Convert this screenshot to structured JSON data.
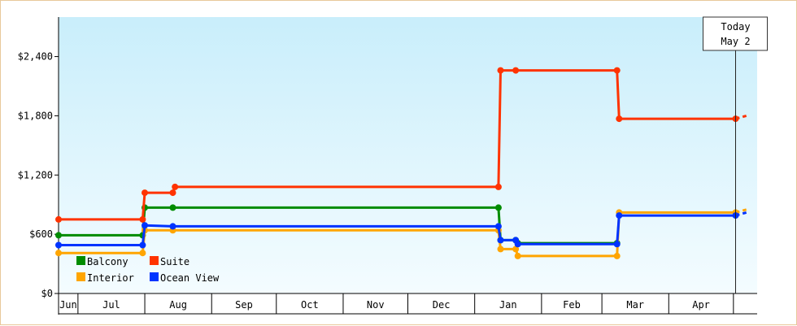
{
  "chart_data": {
    "type": "line",
    "step": true,
    "x_axis": {
      "months": [
        "Jun",
        "Jul",
        "Aug",
        "Sep",
        "Oct",
        "Nov",
        "Dec",
        "Jan",
        "Feb",
        "Mar",
        "Apr"
      ],
      "range": [
        "2013-06-22",
        "2014-05-12"
      ]
    },
    "y_axis": {
      "range": [
        0,
        2800
      ],
      "ticks": [
        {
          "value": 0,
          "label": "$0"
        },
        {
          "value": 600,
          "label": "$600"
        },
        {
          "value": 1200,
          "label": "$1,200"
        },
        {
          "value": 1800,
          "label": "$1,800"
        },
        {
          "value": 2400,
          "label": "$2,400"
        }
      ]
    },
    "today_marker": {
      "date": "2014-05-02",
      "line1": "Today",
      "line2": "May 2"
    },
    "legend": {
      "placement": "bottom-left",
      "columns": 2
    },
    "series": [
      {
        "name": "Balcony",
        "color": "#008c00",
        "points": [
          [
            "2013-06-22",
            590
          ],
          [
            "2013-07-31",
            590
          ],
          [
            "2013-08-01",
            870
          ],
          [
            "2013-08-14",
            870
          ],
          [
            "2014-01-12",
            870
          ],
          [
            "2014-01-13",
            540
          ],
          [
            "2014-01-20",
            540
          ],
          [
            "2014-01-21",
            510
          ],
          [
            "2014-03-08",
            510
          ]
        ]
      },
      {
        "name": "Suite",
        "color": "#ff3300",
        "points": [
          [
            "2013-06-22",
            750
          ],
          [
            "2013-07-31",
            750
          ],
          [
            "2013-08-01",
            1020
          ],
          [
            "2013-08-14",
            1020
          ],
          [
            "2013-08-15",
            1080
          ],
          [
            "2014-01-12",
            1080
          ],
          [
            "2014-01-13",
            2260
          ],
          [
            "2014-01-20",
            2260
          ],
          [
            "2014-03-08",
            2260
          ],
          [
            "2014-03-09",
            1770
          ],
          [
            "2014-05-02",
            1770
          ],
          [
            "2014-05-07",
            1800
          ]
        ]
      },
      {
        "name": "Interior",
        "color": "#ffa500",
        "points": [
          [
            "2013-06-22",
            410
          ],
          [
            "2013-07-31",
            410
          ],
          [
            "2013-08-01",
            640
          ],
          [
            "2013-08-14",
            640
          ],
          [
            "2014-01-12",
            640
          ],
          [
            "2014-01-13",
            450
          ],
          [
            "2014-01-20",
            450
          ],
          [
            "2014-01-21",
            380
          ],
          [
            "2014-03-08",
            380
          ],
          [
            "2014-03-09",
            820
          ],
          [
            "2014-05-02",
            820
          ],
          [
            "2014-05-07",
            850
          ]
        ]
      },
      {
        "name": "Ocean View",
        "color": "#0033ff",
        "points": [
          [
            "2013-06-22",
            490
          ],
          [
            "2013-07-31",
            490
          ],
          [
            "2013-08-01",
            690
          ],
          [
            "2013-08-14",
            680
          ],
          [
            "2014-01-12",
            680
          ],
          [
            "2014-01-13",
            540
          ],
          [
            "2014-01-20",
            540
          ],
          [
            "2014-01-21",
            500
          ],
          [
            "2014-03-08",
            500
          ],
          [
            "2014-03-09",
            790
          ],
          [
            "2014-05-02",
            790
          ],
          [
            "2014-05-07",
            820
          ]
        ]
      }
    ],
    "projected_after_today": true
  }
}
